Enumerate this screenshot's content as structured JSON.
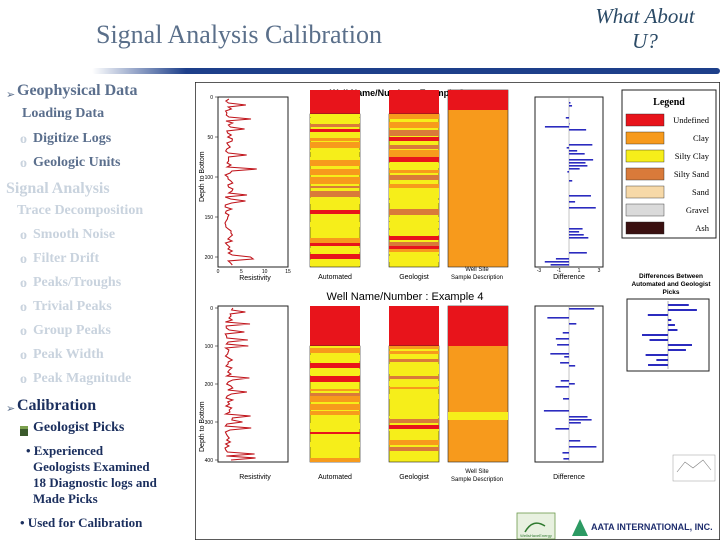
{
  "title": "Signal Analysis Calibration",
  "what_about": "What About U?",
  "menu": {
    "geo": "Geophysical Data",
    "geo_overlap": "Loading Data",
    "digitize": "Digitize Logs",
    "geologic": "Geologic Units",
    "signal": "Signal Analysis",
    "signal2": "Trace Decomposition",
    "smooth": "Smooth Noise",
    "filter": "Filter Drift",
    "peaks": "Peaks/Troughs",
    "trivial": "Trivial Peaks",
    "group": "Group Peaks",
    "width": "Peak Width",
    "mag": "Peak Magnitude",
    "calib": "Calibration",
    "picks": "Geologist Picks",
    "exp1": "• Experienced",
    "exp2": "Geologists Examined",
    "exp3": "18 Diagnostic logs and",
    "exp4": "Made Picks",
    "used": "• Used for Calibration"
  },
  "fig": {
    "ex3": "Well Name/Number : Example 3",
    "ex4": "Well Name/Number : Example 4",
    "ylab": "Depth to Bottom",
    "resist": "Resistivity",
    "auto": "Automated",
    "geol": "Geologist",
    "wellsite1": "Well Site",
    "wellsite2": "Sample Description",
    "diff": "Difference",
    "ticks_top": [
      "0",
      "50",
      "100",
      "150",
      "200"
    ],
    "ticks_bot": [
      "0",
      "100",
      "200",
      "300",
      "400"
    ],
    "xticks": [
      "0",
      "5",
      "10",
      "15"
    ],
    "diffticks": [
      "-3",
      "-1",
      "1",
      "3"
    ],
    "difftitle1": "Differences Between",
    "difftitle2": "Automated and Geologist",
    "difftitle3": "Picks",
    "logo1": "AATA INTERNATIONAL, INC.",
    "logo2": "WellsHaveEnergy"
  },
  "legend": {
    "title": "Legend",
    "items": [
      {
        "label": "Undefined",
        "color": "#e8141b"
      },
      {
        "label": "Clay",
        "color": "#f79a1c"
      },
      {
        "label": "Silty Clay",
        "color": "#f6ee1a"
      },
      {
        "label": "Silty Sand",
        "color": "#d97a3a"
      },
      {
        "label": "Sand",
        "color": "#f7d9a8"
      },
      {
        "label": "Gravel",
        "color": "#dadada"
      },
      {
        "label": "Ash",
        "color": "#3a1010"
      }
    ]
  }
}
